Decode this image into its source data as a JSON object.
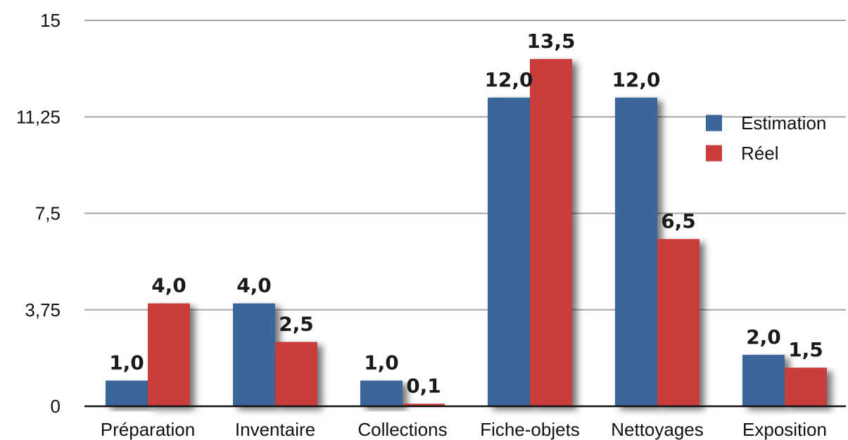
{
  "chart_data": {
    "type": "bar",
    "categories": [
      "Préparation",
      "Inventaire",
      "Collections",
      "Fiche-objets",
      "Nettoyages",
      "Exposition"
    ],
    "series": [
      {
        "name": "Estimation",
        "values": [
          1.0,
          4.0,
          1.0,
          12.0,
          12.0,
          2.0
        ],
        "labels": [
          "1,0",
          "4,0",
          "1,0",
          "12,0",
          "12,0",
          "2,0"
        ],
        "color": "#3a6699"
      },
      {
        "name": "Réel",
        "values": [
          4.0,
          2.5,
          0.1,
          13.5,
          6.5,
          1.5
        ],
        "labels": [
          "4,0",
          "2,5",
          "0,1",
          "13,5",
          "6,5",
          "1,5"
        ],
        "color": "#c93e3b"
      }
    ],
    "ylim": [
      0,
      15
    ],
    "yticks": [
      0,
      3.75,
      7.5,
      11.25,
      15
    ],
    "ytick_labels": [
      "0",
      "3,75",
      "7,5",
      "11,25",
      "15"
    ],
    "grid": true,
    "legend_position": "right"
  }
}
